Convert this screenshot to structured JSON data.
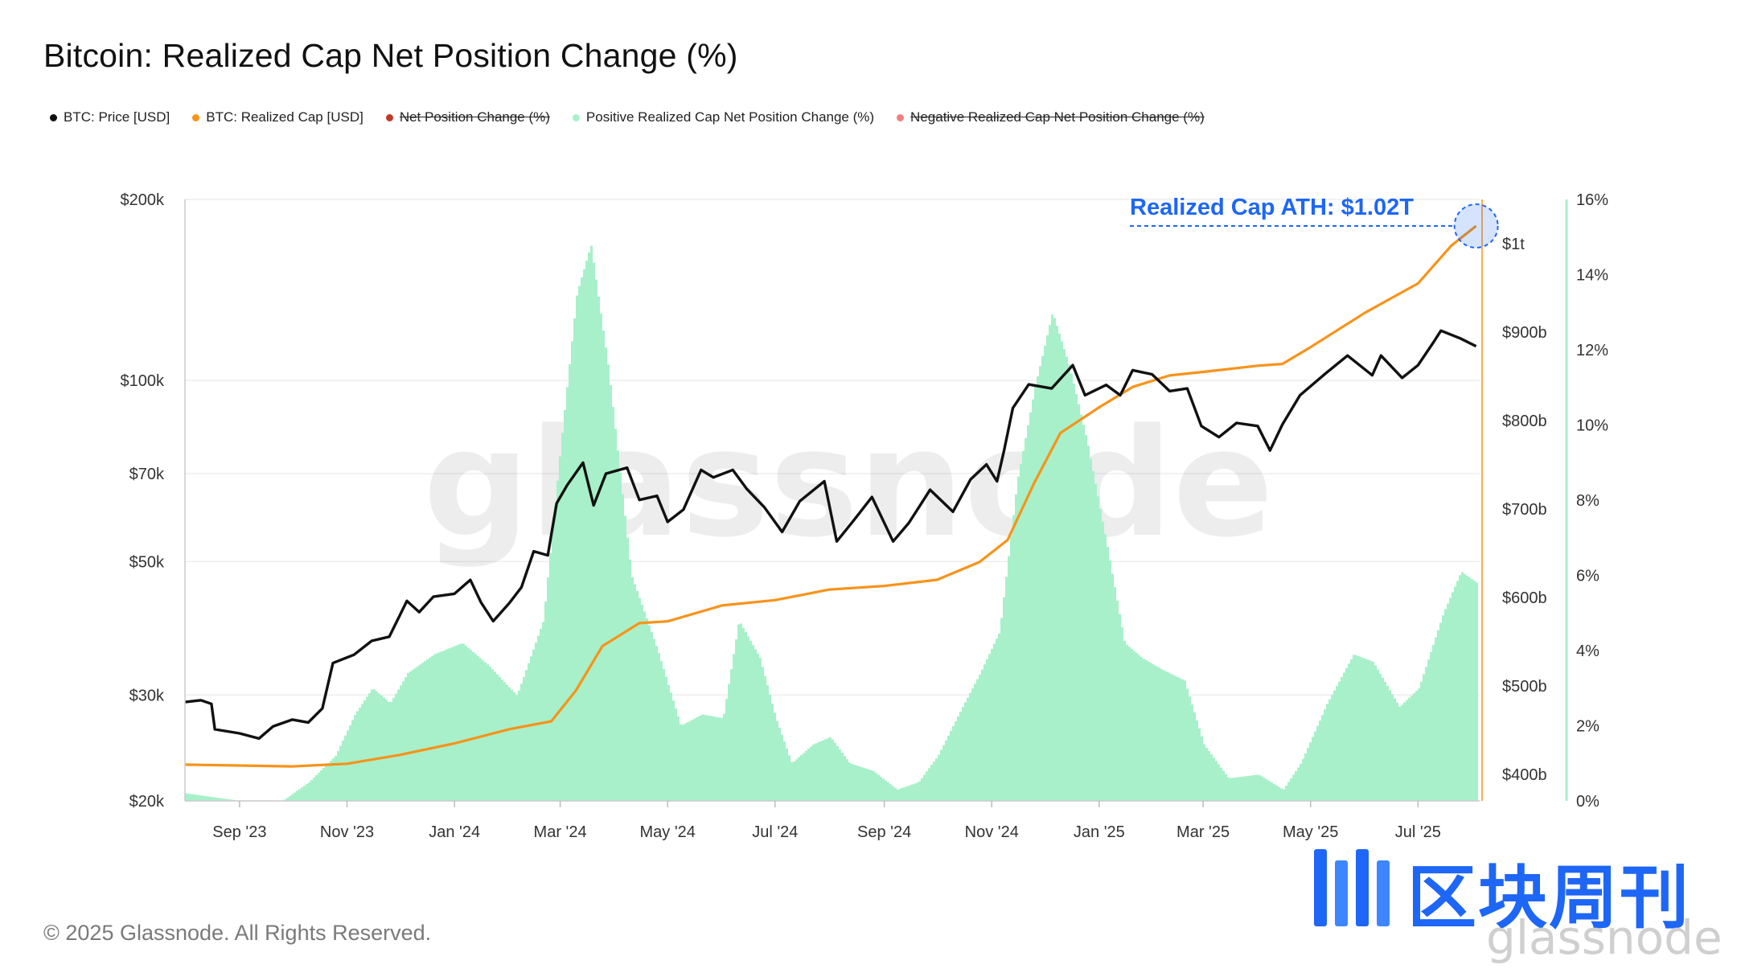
{
  "title": "Bitcoin: Realized Cap Net Position Change (%)",
  "copyright": "© 2025 Glassnode. All Rights Reserved.",
  "watermark": "glassnode",
  "logo": {
    "cn": "区块周刊",
    "sub": "glassnode"
  },
  "legend": [
    {
      "label": "BTC: Price [USD]",
      "color": "#111111",
      "active": true
    },
    {
      "label": "BTC: Realized Cap [USD]",
      "color": "#f7931a",
      "active": true
    },
    {
      "label": "Net Position Change (%)",
      "color": "#c0392b",
      "active": false
    },
    {
      "label": "Positive Realized Cap Net Position Change (%)",
      "color": "#a8f0c9",
      "active": true
    },
    {
      "label": "Negative Realized Cap Net Position Change (%)",
      "color": "#f08080",
      "active": false
    }
  ],
  "chart_data": {
    "type": "line",
    "x_labels": [
      "Sep '23",
      "Nov '23",
      "Jan '24",
      "Mar '24",
      "May '24",
      "Jul '24",
      "Sep '24",
      "Nov '24",
      "Jan '25",
      "Mar '25",
      "May '25",
      "Jul '25"
    ],
    "x_range": [
      "2023-08-01",
      "2025-08-05"
    ],
    "left_axis": {
      "scale": "log",
      "range": [
        20000,
        200000
      ],
      "ticks": [
        "$20k",
        "$30k",
        "$50k",
        "$70k",
        "$100k",
        "$200k"
      ],
      "tick_values": [
        20000,
        30000,
        50000,
        70000,
        100000,
        200000
      ]
    },
    "right_axis_1": {
      "range": [
        370,
        1050
      ],
      "ticks": [
        "$400b",
        "$500b",
        "$600b",
        "$700b",
        "$800b",
        "$900b",
        "$1t"
      ],
      "tick_values": [
        400,
        500,
        600,
        700,
        800,
        900,
        1000
      ],
      "unit": "billions USD"
    },
    "right_axis_2": {
      "range": [
        0,
        16
      ],
      "ticks": [
        "0%",
        "2%",
        "4%",
        "6%",
        "8%",
        "10%",
        "12%",
        "14%",
        "16%"
      ],
      "tick_values": [
        0,
        2,
        4,
        6,
        8,
        10,
        12,
        14,
        16
      ]
    },
    "annotation": {
      "text": "Realized Cap ATH: $1.02T",
      "date": "2025-08-03",
      "value_billion": 1020
    },
    "series": [
      {
        "name": "BTC: Price [USD]",
        "axis": "left",
        "color": "#111111",
        "points": [
          [
            "2023-08-01",
            29200
          ],
          [
            "2023-08-10",
            29400
          ],
          [
            "2023-08-16",
            29000
          ],
          [
            "2023-08-18",
            26300
          ],
          [
            "2023-09-01",
            25900
          ],
          [
            "2023-09-12",
            25400
          ],
          [
            "2023-09-20",
            26600
          ],
          [
            "2023-10-01",
            27300
          ],
          [
            "2023-10-10",
            27000
          ],
          [
            "2023-10-18",
            28500
          ],
          [
            "2023-10-24",
            33900
          ],
          [
            "2023-11-05",
            35000
          ],
          [
            "2023-11-15",
            36900
          ],
          [
            "2023-11-25",
            37500
          ],
          [
            "2023-12-05",
            43000
          ],
          [
            "2023-12-12",
            41200
          ],
          [
            "2023-12-20",
            43700
          ],
          [
            "2024-01-01",
            44200
          ],
          [
            "2024-01-10",
            46600
          ],
          [
            "2024-01-16",
            42800
          ],
          [
            "2024-01-23",
            39800
          ],
          [
            "2024-02-01",
            42600
          ],
          [
            "2024-02-08",
            45300
          ],
          [
            "2024-02-15",
            52000
          ],
          [
            "2024-02-23",
            51200
          ],
          [
            "2024-02-28",
            62500
          ],
          [
            "2024-03-05",
            67000
          ],
          [
            "2024-03-14",
            73000
          ],
          [
            "2024-03-20",
            62000
          ],
          [
            "2024-03-27",
            70000
          ],
          [
            "2024-04-08",
            71600
          ],
          [
            "2024-04-15",
            63300
          ],
          [
            "2024-04-25",
            64300
          ],
          [
            "2024-05-01",
            58200
          ],
          [
            "2024-05-10",
            61000
          ],
          [
            "2024-05-20",
            71000
          ],
          [
            "2024-05-27",
            69000
          ],
          [
            "2024-06-07",
            71000
          ],
          [
            "2024-06-15",
            66000
          ],
          [
            "2024-06-25",
            61500
          ],
          [
            "2024-07-05",
            56000
          ],
          [
            "2024-07-15",
            63000
          ],
          [
            "2024-07-29",
            68000
          ],
          [
            "2024-08-05",
            54000
          ],
          [
            "2024-08-15",
            58700
          ],
          [
            "2024-08-25",
            64000
          ],
          [
            "2024-09-06",
            54000
          ],
          [
            "2024-09-15",
            58000
          ],
          [
            "2024-09-27",
            65800
          ],
          [
            "2024-10-10",
            60500
          ],
          [
            "2024-10-20",
            68500
          ],
          [
            "2024-10-29",
            72500
          ],
          [
            "2024-11-04",
            68000
          ],
          [
            "2024-11-08",
            76500
          ],
          [
            "2024-11-13",
            90000
          ],
          [
            "2024-11-22",
            98500
          ],
          [
            "2024-12-05",
            97000
          ],
          [
            "2024-12-17",
            106000
          ],
          [
            "2024-12-24",
            94500
          ],
          [
            "2025-01-05",
            98300
          ],
          [
            "2025-01-13",
            94500
          ],
          [
            "2025-01-20",
            104000
          ],
          [
            "2025-01-31",
            102400
          ],
          [
            "2025-02-10",
            96000
          ],
          [
            "2025-02-20",
            97000
          ],
          [
            "2025-02-28",
            84000
          ],
          [
            "2025-03-10",
            80500
          ],
          [
            "2025-03-20",
            85000
          ],
          [
            "2025-04-01",
            84000
          ],
          [
            "2025-04-08",
            76500
          ],
          [
            "2025-04-15",
            84500
          ],
          [
            "2025-04-25",
            94500
          ],
          [
            "2025-05-10",
            103000
          ],
          [
            "2025-05-22",
            110000
          ],
          [
            "2025-06-05",
            102000
          ],
          [
            "2025-06-10",
            110000
          ],
          [
            "2025-06-22",
            101000
          ],
          [
            "2025-07-01",
            106000
          ],
          [
            "2025-07-10",
            116000
          ],
          [
            "2025-07-14",
            121000
          ],
          [
            "2025-07-25",
            117500
          ],
          [
            "2025-08-03",
            114000
          ]
        ]
      },
      {
        "name": "BTC: Realized Cap [USD]",
        "axis": "right_1",
        "color": "#f7931a",
        "points": [
          [
            "2023-08-01",
            411
          ],
          [
            "2023-09-01",
            410
          ],
          [
            "2023-10-01",
            409
          ],
          [
            "2023-11-01",
            412
          ],
          [
            "2023-12-01",
            422
          ],
          [
            "2024-01-01",
            435
          ],
          [
            "2024-02-01",
            451
          ],
          [
            "2024-02-25",
            460
          ],
          [
            "2024-03-10",
            495
          ],
          [
            "2024-03-25",
            545
          ],
          [
            "2024-04-15",
            571
          ],
          [
            "2024-05-01",
            573
          ],
          [
            "2024-06-01",
            591
          ],
          [
            "2024-07-01",
            597
          ],
          [
            "2024-08-01",
            609
          ],
          [
            "2024-09-01",
            613
          ],
          [
            "2024-10-01",
            620
          ],
          [
            "2024-10-25",
            640
          ],
          [
            "2024-11-10",
            665
          ],
          [
            "2024-11-25",
            729
          ],
          [
            "2024-12-10",
            786
          ],
          [
            "2025-01-01",
            815
          ],
          [
            "2025-01-20",
            838
          ],
          [
            "2025-02-10",
            851
          ],
          [
            "2025-03-01",
            855
          ],
          [
            "2025-04-01",
            862
          ],
          [
            "2025-04-15",
            864
          ],
          [
            "2025-05-01",
            883
          ],
          [
            "2025-06-01",
            922
          ],
          [
            "2025-07-01",
            955
          ],
          [
            "2025-07-20",
            998
          ],
          [
            "2025-08-03",
            1020
          ]
        ]
      },
      {
        "name": "Positive Realized Cap Net Position Change (%)",
        "axis": "right_2",
        "color": "#a8f0c9",
        "points": [
          [
            "2023-08-01",
            0.2
          ],
          [
            "2023-09-01",
            0.0
          ],
          [
            "2023-09-25",
            0.0
          ],
          [
            "2023-10-10",
            0.5
          ],
          [
            "2023-10-25",
            1.2
          ],
          [
            "2023-11-05",
            2.3
          ],
          [
            "2023-11-15",
            3.0
          ],
          [
            "2023-11-25",
            2.6
          ],
          [
            "2023-12-05",
            3.4
          ],
          [
            "2023-12-20",
            3.9
          ],
          [
            "2024-01-05",
            4.2
          ],
          [
            "2024-01-20",
            3.6
          ],
          [
            "2024-02-05",
            2.8
          ],
          [
            "2024-02-20",
            4.8
          ],
          [
            "2024-03-01",
            9.5
          ],
          [
            "2024-03-10",
            13.5
          ],
          [
            "2024-03-18",
            14.8
          ],
          [
            "2024-03-28",
            11.5
          ],
          [
            "2024-04-10",
            6.0
          ],
          [
            "2024-04-25",
            4.0
          ],
          [
            "2024-05-08",
            2.0
          ],
          [
            "2024-05-20",
            2.3
          ],
          [
            "2024-06-01",
            2.2
          ],
          [
            "2024-06-10",
            4.8
          ],
          [
            "2024-06-22",
            3.8
          ],
          [
            "2024-07-01",
            2.2
          ],
          [
            "2024-07-10",
            1.0
          ],
          [
            "2024-07-22",
            1.5
          ],
          [
            "2024-08-01",
            1.7
          ],
          [
            "2024-08-12",
            1.0
          ],
          [
            "2024-08-25",
            0.8
          ],
          [
            "2024-09-08",
            0.3
          ],
          [
            "2024-09-20",
            0.5
          ],
          [
            "2024-10-01",
            1.2
          ],
          [
            "2024-10-15",
            2.5
          ],
          [
            "2024-10-25",
            3.4
          ],
          [
            "2024-11-05",
            4.5
          ],
          [
            "2024-11-15",
            8.5
          ],
          [
            "2024-11-25",
            11.0
          ],
          [
            "2024-12-05",
            13.0
          ],
          [
            "2024-12-15",
            11.5
          ],
          [
            "2024-12-25",
            9.5
          ],
          [
            "2025-01-05",
            6.8
          ],
          [
            "2025-01-15",
            4.2
          ],
          [
            "2025-01-25",
            3.8
          ],
          [
            "2025-02-05",
            3.5
          ],
          [
            "2025-02-18",
            3.2
          ],
          [
            "2025-03-01",
            1.5
          ],
          [
            "2025-03-15",
            0.6
          ],
          [
            "2025-04-01",
            0.7
          ],
          [
            "2025-04-15",
            0.3
          ],
          [
            "2025-04-25",
            1.0
          ],
          [
            "2025-05-10",
            2.6
          ],
          [
            "2025-05-25",
            3.9
          ],
          [
            "2025-06-05",
            3.7
          ],
          [
            "2025-06-20",
            2.5
          ],
          [
            "2025-07-01",
            3.0
          ],
          [
            "2025-07-15",
            5.0
          ],
          [
            "2025-07-25",
            6.1
          ],
          [
            "2025-08-03",
            5.8
          ]
        ]
      }
    ]
  }
}
